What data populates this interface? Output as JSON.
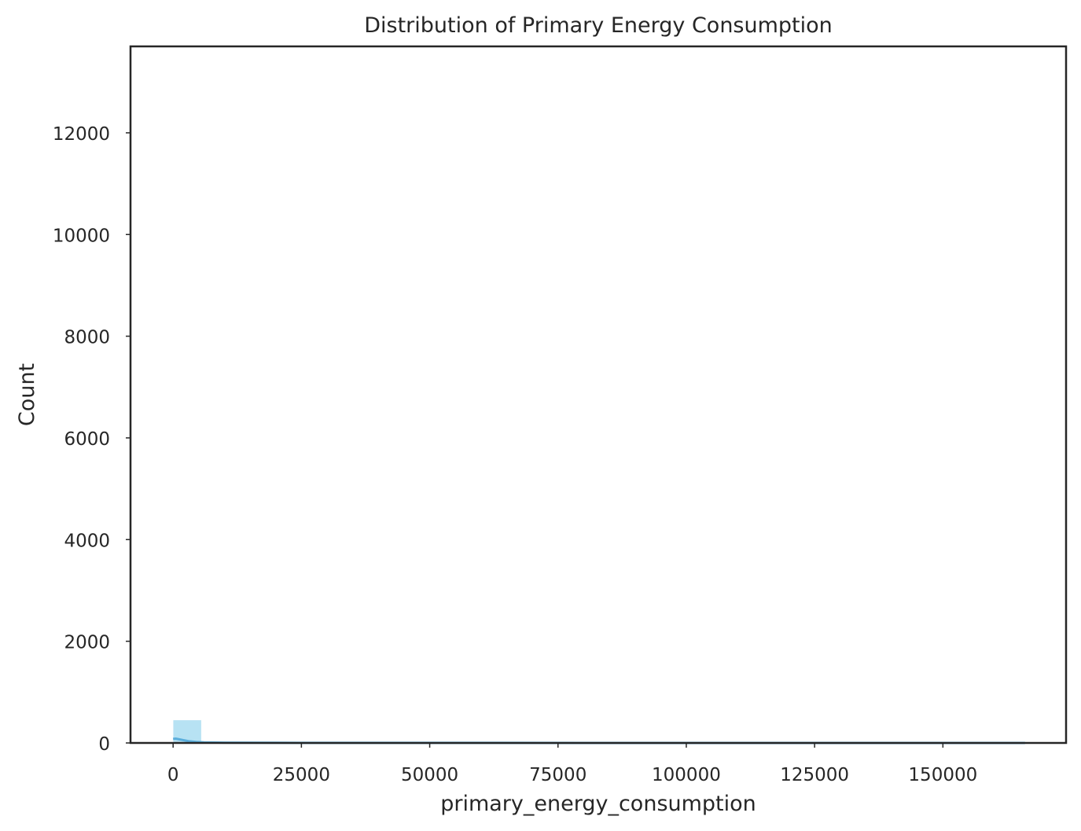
{
  "chart_data": {
    "type": "bar",
    "title": "Distribution of Primary Energy Consumption",
    "xlabel": "primary_energy_consumption",
    "ylabel": "Count",
    "xlim": [
      -8300,
      174000
    ],
    "ylim": [
      0,
      13700
    ],
    "x_ticks": [
      0,
      25000,
      50000,
      75000,
      100000,
      125000,
      150000
    ],
    "x_tick_labels": [
      "0",
      "25000",
      "50000",
      "75000",
      "100000",
      "125000",
      "150000"
    ],
    "y_ticks": [
      0,
      2000,
      4000,
      6000,
      8000,
      10000,
      12000
    ],
    "y_tick_labels": [
      "0",
      "2000",
      "4000",
      "6000",
      "8000",
      "10000",
      "12000"
    ],
    "grid": false,
    "bar_color": "#87ceeb",
    "kde_color": "#5aaedc",
    "histogram": {
      "bin_starts": [
        0,
        5500,
        11000,
        16500,
        22000,
        27500,
        33000,
        38500,
        44000,
        49500,
        55000,
        60500,
        66000,
        71500,
        77000,
        82500,
        88000,
        93500,
        99000,
        104500,
        110000,
        115500,
        121000,
        126500,
        132000,
        137500,
        143000,
        148500,
        154000,
        159500
      ],
      "bin_width": 5500,
      "counts": [
        450,
        25,
        12,
        8,
        6,
        5,
        4,
        3,
        3,
        2,
        2,
        2,
        2,
        1,
        1,
        1,
        1,
        1,
        1,
        1,
        1,
        1,
        1,
        1,
        1,
        1,
        1,
        1,
        1,
        1
      ]
    },
    "kde": {
      "x": [
        0,
        500,
        1000,
        2000,
        3000,
        4500,
        6000,
        10000,
        20000,
        40000,
        80000,
        120000,
        166000
      ],
      "y": [
        80,
        85,
        75,
        55,
        35,
        20,
        12,
        6,
        3,
        2,
        1,
        1,
        1
      ]
    }
  }
}
